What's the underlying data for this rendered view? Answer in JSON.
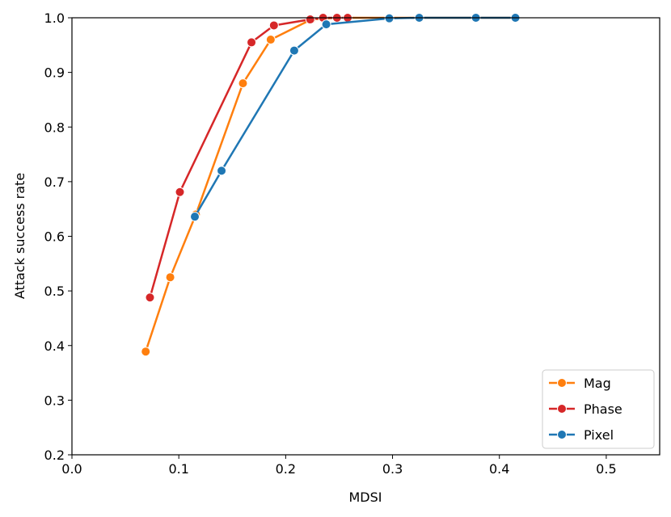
{
  "chart_data": {
    "type": "line",
    "title": "",
    "xlabel": "MDSI",
    "ylabel": "Attack success rate",
    "xlim": [
      0.0,
      0.55
    ],
    "ylim": [
      0.2,
      1.0
    ],
    "xticks": [
      0.0,
      0.1,
      0.2,
      0.3,
      0.4,
      0.5
    ],
    "xtick_labels": [
      "0.0",
      "0.1",
      "0.2",
      "0.3",
      "0.4",
      "0.5"
    ],
    "yticks": [
      0.2,
      0.3,
      0.4,
      0.5,
      0.6,
      0.7,
      0.8,
      0.9,
      1.0
    ],
    "ytick_labels": [
      "0.2",
      "0.3",
      "0.4",
      "0.5",
      "0.6",
      "0.7",
      "0.8",
      "0.9",
      "1.0"
    ],
    "grid": false,
    "legend": "bottom-right",
    "series": [
      {
        "name": "Mag",
        "color": "#ff7f0e",
        "x": [
          0.069,
          0.092,
          0.116,
          0.16,
          0.186,
          0.224,
          0.248,
          0.258,
          0.297,
          0.325,
          0.378,
          0.415
        ],
        "y": [
          0.389,
          0.525,
          0.64,
          0.88,
          0.96,
          0.997,
          1.0,
          1.0,
          1.0,
          1.0,
          1.0,
          1.0
        ]
      },
      {
        "name": "Phase",
        "color": "#d62728",
        "x": [
          0.073,
          0.101,
          0.168,
          0.189,
          0.223,
          0.235,
          0.248,
          0.258
        ],
        "y": [
          0.488,
          0.681,
          0.955,
          0.986,
          0.997,
          1.0,
          1.0,
          1.0
        ]
      },
      {
        "name": "Pixel",
        "color": "#1f77b4",
        "x": [
          0.115,
          0.14,
          0.208,
          0.238,
          0.297,
          0.325,
          0.378,
          0.415
        ],
        "y": [
          0.636,
          0.72,
          0.94,
          0.988,
          0.999,
          1.0,
          1.0,
          1.0
        ]
      }
    ]
  }
}
